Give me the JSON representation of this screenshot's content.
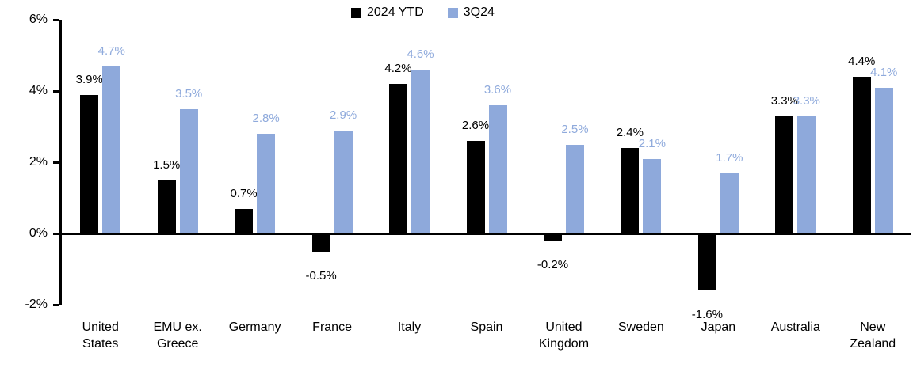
{
  "chart_data": {
    "type": "bar",
    "title": "",
    "categories": [
      "United States",
      "EMU ex. Greece",
      "Germany",
      "France",
      "Italy",
      "Spain",
      "United Kingdom",
      "Sweden",
      "Japan",
      "Australia",
      "New Zealand"
    ],
    "series": [
      {
        "name": "2024 YTD",
        "color": "#000000",
        "label_color": "#000000",
        "values": [
          3.9,
          1.5,
          0.7,
          -0.5,
          4.2,
          2.6,
          -0.2,
          2.4,
          -1.6,
          3.3,
          4.4
        ],
        "labels": [
          "3.9%",
          "1.5%",
          "0.7%",
          "-0.5%",
          "4.2%",
          "2.6%",
          "-0.2%",
          "2.4%",
          "-1.6%",
          "3.3%",
          "4.4%"
        ]
      },
      {
        "name": "3Q24",
        "color": "#8EA9DB",
        "label_color": "#8FAADC",
        "values": [
          4.7,
          3.5,
          2.8,
          2.9,
          4.6,
          3.6,
          2.5,
          2.1,
          1.7,
          3.3,
          4.1
        ],
        "labels": [
          "4.7%",
          "3.5%",
          "2.8%",
          "2.9%",
          "4.6%",
          "3.6%",
          "2.5%",
          "2.1%",
          "1.7%",
          "3.3%",
          "4.1%"
        ]
      }
    ],
    "y_axis": {
      "ticks": [
        {
          "label": "6%",
          "value": 6
        },
        {
          "label": "4%",
          "value": 4
        },
        {
          "label": "2%",
          "value": 2
        },
        {
          "label": "0%",
          "value": 0
        },
        {
          "label": "-2%",
          "value": -2
        }
      ],
      "range": [
        -2,
        6
      ]
    },
    "grid": false,
    "legend_position": "top-center",
    "background_color": "#FFFFFF",
    "axis_color": "#000000"
  }
}
